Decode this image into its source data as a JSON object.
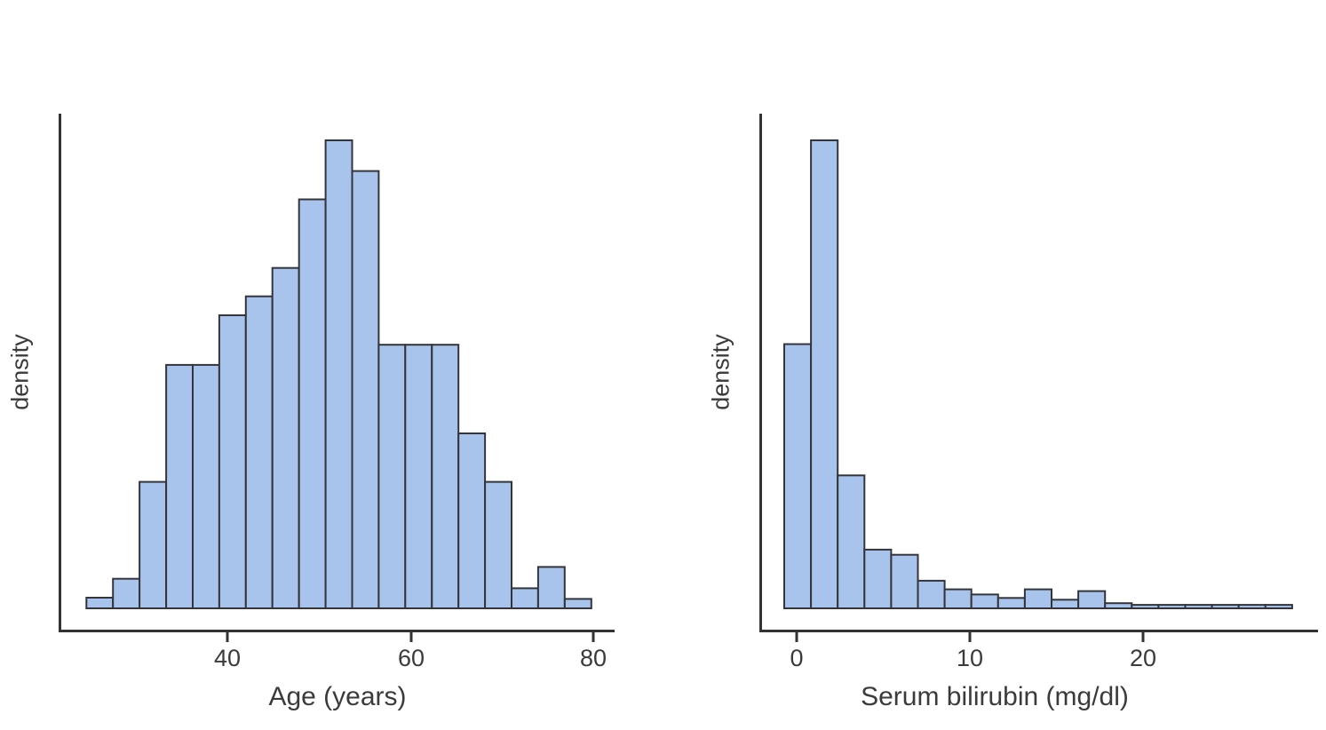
{
  "figure": {
    "background": "#ffffff",
    "bar_fill": "#a9c4ec",
    "bar_stroke": "#34353b",
    "axis_color": "#333333",
    "text_color": "#3b3b3b"
  },
  "left_plot": {
    "ylabel": "density",
    "xlabel": "Age (years)",
    "x_tick_labels": [
      "40",
      "60",
      "80"
    ]
  },
  "right_plot": {
    "ylabel": "density",
    "xlabel": "Serum bilirubin (mg/dl)",
    "x_tick_labels": [
      "0",
      "10",
      "20"
    ]
  },
  "chart_data": [
    {
      "type": "bar",
      "subtype": "histogram",
      "title": "",
      "xlabel": "Age (years)",
      "ylabel": "density",
      "legend": "none",
      "grid": false,
      "x_tick_labels": [
        40,
        60,
        80
      ],
      "y_tick_labels": [],
      "xlim": [
        22,
        82
      ],
      "bin_start": 24.6,
      "bin_width": 2.9,
      "densities": [
        0.0009,
        0.0025,
        0.0107,
        0.0206,
        0.0206,
        0.0248,
        0.0264,
        0.0288,
        0.0346,
        0.0396,
        0.037,
        0.0223,
        0.0223,
        0.0223,
        0.0148,
        0.0107,
        0.0017,
        0.0035,
        0.0008
      ]
    },
    {
      "type": "bar",
      "subtype": "histogram",
      "title": "",
      "xlabel": "Serum bilirubin (mg/dl)",
      "ylabel": "density",
      "legend": "none",
      "grid": false,
      "x_tick_labels": [
        0,
        10,
        20
      ],
      "y_tick_labels": [],
      "xlim": [
        -2.5,
        30.5
      ],
      "bin_start": -0.5,
      "bin_width": 1.55,
      "densities": [
        0.153,
        0.271,
        0.077,
        0.034,
        0.031,
        0.016,
        0.011,
        0.008,
        0.006,
        0.011,
        0.005,
        0.01,
        0.003,
        0.002,
        0.002,
        0.002,
        0.002,
        0.002,
        0.002
      ]
    }
  ]
}
